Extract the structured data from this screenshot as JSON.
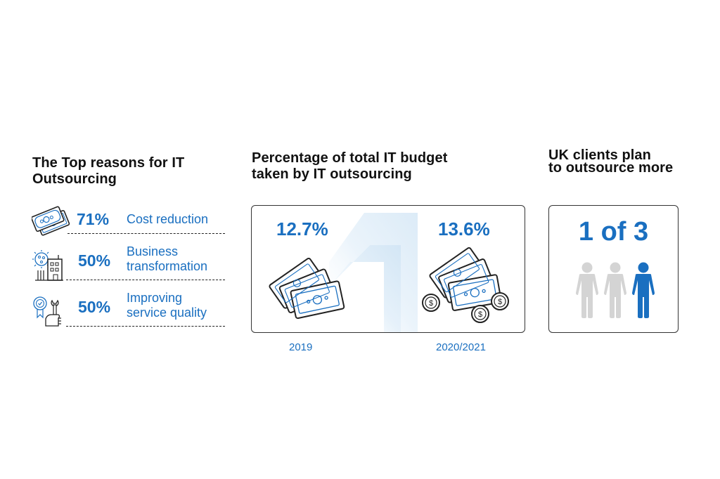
{
  "section_reasons": {
    "title_line1": "The Top reasons for IT",
    "title_line2": "Outsourcing",
    "items": [
      {
        "icon": "money-bills-icon",
        "percent": "71%",
        "label_line1": "Cost reduction",
        "label_line2": ""
      },
      {
        "icon": "virus-building-icon",
        "percent": "50%",
        "label_line1": "Business",
        "label_line2": "transformation"
      },
      {
        "icon": "award-wrench-icon",
        "percent": "50%",
        "label_line1": "Improving",
        "label_line2": "service quality"
      }
    ]
  },
  "section_budget": {
    "title_line1": "Percentage of total IT budget",
    "title_line2": "taken by IT outsourcing",
    "left": {
      "value": "12.7%",
      "year": "2019",
      "icon": "cash-stack-icon"
    },
    "right": {
      "value": "13.6%",
      "year": "2020/2021",
      "icon": "cash-coins-icon"
    }
  },
  "section_uk": {
    "title_line1": "UK clients plan",
    "title_line2": "to outsource more",
    "ratio": "1 of 3",
    "people_total": 3,
    "people_highlighted": 1
  },
  "colors": {
    "accent": "#1a6fc0",
    "text": "#111111",
    "person_inactive": "#d4d4d4",
    "arrow_tint": "#d9eaf6"
  }
}
